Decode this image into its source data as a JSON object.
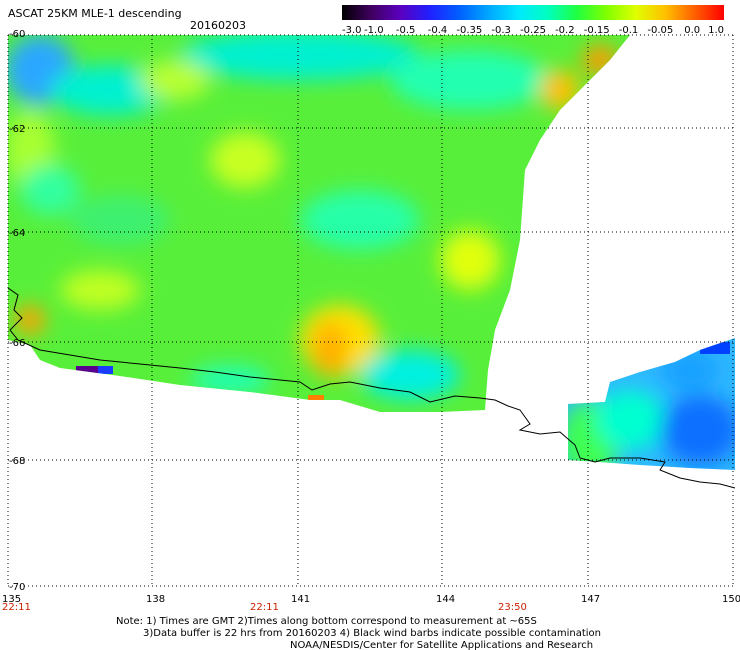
{
  "header": {
    "title": "ASCAT 25KM MLE-1 descending",
    "date": "20160203"
  },
  "colorbar": {
    "labels": [
      "-3.0",
      "-1.0",
      "-0.5",
      "-0.4",
      "-0.35",
      "-0.3",
      "-0.25",
      "-0.2",
      "-0.15",
      "-0.1",
      "-0.05",
      "0.0",
      "1.0"
    ],
    "colors": [
      "#000000",
      "#400060",
      "#5a00c0",
      "#2020ff",
      "#0060ff",
      "#00a8ff",
      "#00e8ff",
      "#00ffc0",
      "#20ff40",
      "#80ff00",
      "#e0ff00",
      "#ffc000",
      "#ff6000",
      "#ff0000"
    ]
  },
  "map": {
    "lat_labels": [
      "-60",
      "-62",
      "-64",
      "-66",
      "-68",
      "-70"
    ],
    "lon_labels": [
      "135",
      "138",
      "141",
      "144",
      "147",
      "150"
    ],
    "time_labels": [
      "22:11",
      "22:11",
      "23:50"
    ]
  },
  "notes": {
    "line1": "Note: 1) Times are GMT 2)Times along bottom correspond to measurement at ~65S",
    "line2": "3)Data buffer is 22 hrs from 20160203 4) Black wind barbs indicate possible contamination",
    "line3": "NOAA/NESDIS/Center for Satellite Applications and Research"
  }
}
